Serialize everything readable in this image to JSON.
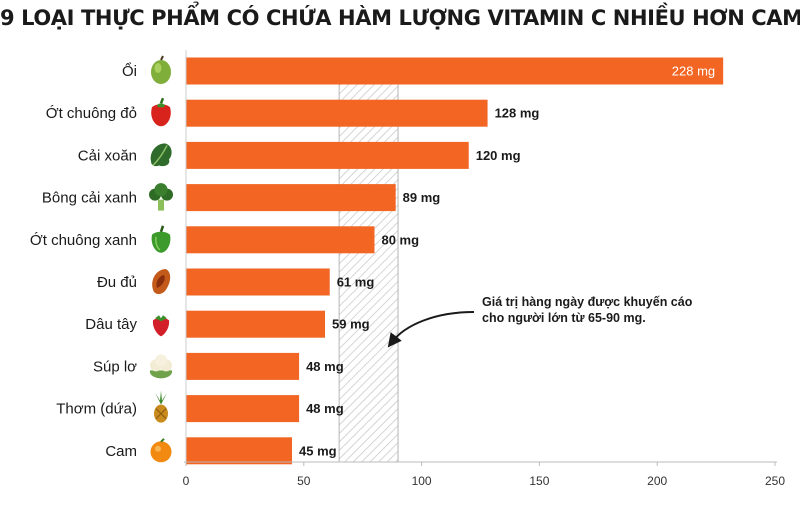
{
  "colors": {
    "bar": "#f26522",
    "band_stroke": "#b5b5b5",
    "text": "#1a1a1a"
  },
  "chart_data": {
    "type": "bar",
    "orientation": "horizontal",
    "title": "9 LOẠI THỰC PHẨM CÓ CHỨA HÀM LƯỢNG VITAMIN C NHIỀU HƠN CAM",
    "categories": [
      "Ổi",
      "Ớt chuông đỏ",
      "Cải xoăn",
      "Bông cải xanh",
      "Ớt chuông xanh",
      "Đu đủ",
      "Dâu tây",
      "Súp lơ",
      "Thơm (dứa)",
      "Cam"
    ],
    "icons": [
      "guava-icon",
      "red-pepper-icon",
      "kale-icon",
      "broccoli-icon",
      "green-pepper-icon",
      "papaya-icon",
      "strawberry-icon",
      "cauliflower-icon",
      "pineapple-icon",
      "orange-icon"
    ],
    "values": [
      228,
      128,
      120,
      89,
      80,
      61,
      59,
      48,
      48,
      45
    ],
    "value_labels": [
      "228 mg",
      "128 mg",
      "120 mg",
      "89 mg",
      "80 mg",
      "61 mg",
      "59 mg",
      "48 mg",
      "48 mg",
      "45 mg"
    ],
    "xlim": [
      0,
      250
    ],
    "xticks": [
      "0",
      "50",
      "100",
      "150",
      "200",
      "250"
    ],
    "xlabel": "",
    "ylabel": "",
    "band": [
      65,
      90
    ],
    "annotation_lines": [
      "Giá trị hàng ngày được khuyến cáo",
      "cho người lớn từ 65-90 mg."
    ],
    "grid": false,
    "legend": "none"
  }
}
